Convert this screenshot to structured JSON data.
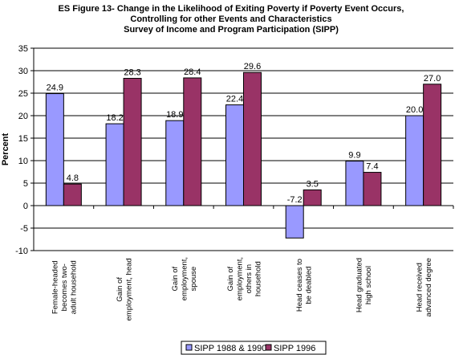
{
  "chart_data": {
    "type": "bar",
    "title": [
      "ES Figure 13- Change in the Likelihood of Exiting Poverty if Poverty Event Occurs,",
      "Controlling for other Events and Characteristics",
      "Survey of Income and Program Participation (SIPP)"
    ],
    "xlabel": "",
    "ylabel": "Percent",
    "ylim": [
      -10,
      35
    ],
    "yticks": [
      -10,
      -5,
      0,
      5,
      10,
      15,
      20,
      25,
      30,
      35
    ],
    "grid": true,
    "legend_position": "bottom",
    "categories": [
      [
        "Female-headed",
        "becomes two-",
        "adult household"
      ],
      [
        "Gain of",
        "employment, head"
      ],
      [
        "Gain of",
        "employment,",
        "spouse"
      ],
      [
        "Gain of",
        "employment,",
        "others in",
        "household"
      ],
      [
        "Head ceases to",
        "be deabled"
      ],
      [
        "Head graduated",
        "high school"
      ],
      [
        "Head received",
        "advanced degree"
      ]
    ],
    "series": [
      {
        "name": "SIPP 1988 & 1990",
        "color": "#9999ff",
        "values": [
          24.9,
          18.2,
          18.9,
          22.4,
          -7.2,
          9.9,
          20.0
        ],
        "labels": [
          "24.9",
          "18.2",
          "18.9",
          "22.4",
          "-7.2",
          "9.9",
          "20.0"
        ]
      },
      {
        "name": "SIPP 1996",
        "color": "#993366",
        "values": [
          4.8,
          28.3,
          28.4,
          29.6,
          3.5,
          7.4,
          27.0
        ],
        "labels": [
          "4.8",
          "28.3",
          "28.4",
          "29.6",
          "3.5",
          "7.4",
          "27.0"
        ]
      }
    ]
  }
}
